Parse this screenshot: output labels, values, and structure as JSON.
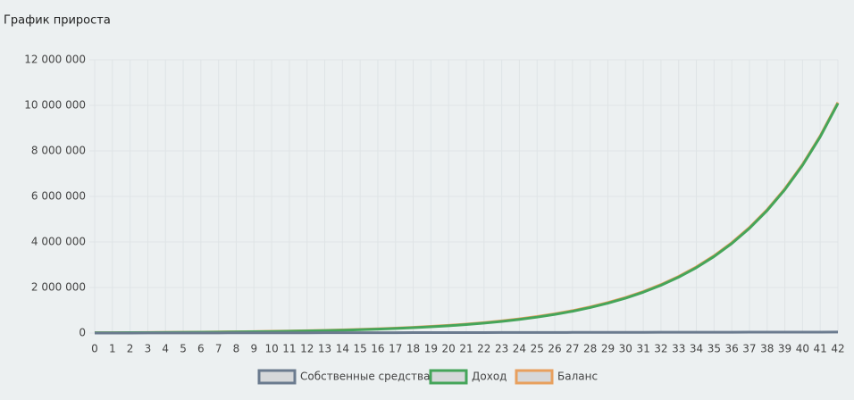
{
  "chart_data": {
    "type": "line",
    "title": "График прироста",
    "categories": [
      "0",
      "1",
      "2",
      "3",
      "4",
      "5",
      "6",
      "7",
      "8",
      "9",
      "10",
      "11",
      "12",
      "13",
      "14",
      "15",
      "16",
      "17",
      "18",
      "19",
      "20",
      "21",
      "22",
      "23",
      "24",
      "25",
      "26",
      "27",
      "28",
      "29",
      "30",
      "31",
      "32",
      "33",
      "34",
      "35",
      "36",
      "37",
      "38",
      "39",
      "40",
      "41",
      "42"
    ],
    "series": [
      {
        "name": "Собственные средства",
        "color": "#6b7b8f",
        "values": [
          0,
          1000,
          2000,
          3000,
          4000,
          5000,
          6000,
          7000,
          8000,
          9000,
          10000,
          11000,
          12000,
          13000,
          14000,
          15000,
          16000,
          17000,
          18000,
          19000,
          20000,
          21000,
          22000,
          23000,
          24000,
          25000,
          26000,
          27000,
          28000,
          29000,
          30000,
          31000,
          32000,
          33000,
          34000,
          35000,
          36000,
          37000,
          38000,
          39000,
          40000,
          41000,
          42000
        ]
      },
      {
        "name": "Доход",
        "color": "#45a55a",
        "values": [
          14000,
          16000,
          19000,
          22000,
          26000,
          30000,
          35000,
          41000,
          48000,
          57000,
          66000,
          78000,
          91000,
          106000,
          124000,
          145000,
          170000,
          199000,
          233000,
          273000,
          319000,
          373000,
          436000,
          511000,
          598000,
          699000,
          818000,
          957000,
          1120000,
          1310000,
          1533000,
          1793000,
          2098000,
          2455000,
          2872000,
          3360000,
          3932000,
          4600000,
          5382000,
          6297000,
          7367000,
          8620000,
          10085000
        ]
      },
      {
        "name": "Баланс",
        "color": "#e8a05e",
        "values": [
          14000,
          17000,
          21000,
          25000,
          30000,
          35000,
          41000,
          48000,
          56000,
          66000,
          76000,
          89000,
          103000,
          119000,
          138000,
          160000,
          186000,
          216000,
          251000,
          292000,
          339000,
          394000,
          458000,
          534000,
          622000,
          724000,
          844000,
          984000,
          1148000,
          1339000,
          1563000,
          1824000,
          2130000,
          2488000,
          2906000,
          3395000,
          3968000,
          4637000,
          5420000,
          6336000,
          7407000,
          8661000,
          10127000
        ]
      }
    ],
    "ylim": [
      0,
      12000000
    ],
    "yticks": [
      0,
      {
        "value": 2000000,
        "label": "2 000 000"
      },
      {
        "value": 4000000,
        "label": "4 000 000"
      },
      {
        "value": 6000000,
        "label": "6 000 000"
      },
      {
        "value": 8000000,
        "label": "8 000 000"
      },
      {
        "value": 10000000,
        "label": "10 000 000"
      },
      {
        "value": 12000000,
        "label": "12 000 000"
      }
    ],
    "grid": true
  }
}
